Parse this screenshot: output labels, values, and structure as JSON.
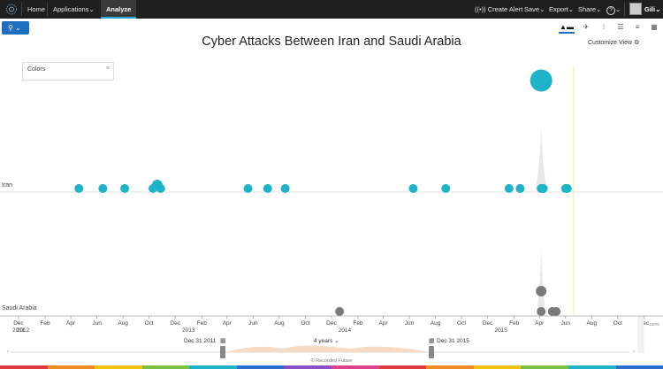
{
  "topbar": {
    "home": "Home",
    "applications": "Applications",
    "analyze": "Analyze",
    "create_alert": "Create Alert",
    "save": "Save",
    "export": "Export",
    "share": "Share",
    "help": "?",
    "user": "Gili"
  },
  "title": "Cyber Attacks Between Iran and Saudi Arabia",
  "customize_view": "Customize View",
  "colors_panel": {
    "label": "Colors"
  },
  "timeline": {
    "start_label": "Dec 31 2011",
    "end_label": "Dec 31 2015",
    "span_label": "4 years",
    "zoom_label": "100%"
  },
  "footer": "© Recorded Future",
  "colors": {
    "iran": "#1fb3c9",
    "saudi": "#7a7a7a",
    "topbar": "#1f1f1f",
    "accent": "#1e6fbf"
  },
  "chart_data": {
    "type": "scatter",
    "title": "Cyber Attacks Between Iran and Saudi Arabia",
    "x_ticks": [
      {
        "date": "2011-12",
        "label": "Dec"
      },
      {
        "date": "2012-02",
        "label": "Feb"
      },
      {
        "date": "2012-04",
        "label": "Apr"
      },
      {
        "date": "2012-06",
        "label": "Jun"
      },
      {
        "date": "2012-08",
        "label": "Aug"
      },
      {
        "date": "2012-10",
        "label": "Oct"
      },
      {
        "date": "2012-12",
        "label": "Dec"
      },
      {
        "date": "2013-02",
        "label": "Feb"
      },
      {
        "date": "2013-04",
        "label": "Apr"
      },
      {
        "date": "2013-06",
        "label": "Jun"
      },
      {
        "date": "2013-08",
        "label": "Aug"
      },
      {
        "date": "2013-10",
        "label": "Oct"
      },
      {
        "date": "2013-12",
        "label": "Dec"
      },
      {
        "date": "2014-02",
        "label": "Feb"
      },
      {
        "date": "2014-04",
        "label": "Apr"
      },
      {
        "date": "2014-06",
        "label": "Jun"
      },
      {
        "date": "2014-08",
        "label": "Aug"
      },
      {
        "date": "2014-10",
        "label": "Oct"
      },
      {
        "date": "2014-12",
        "label": "Dec"
      },
      {
        "date": "2015-02",
        "label": "Feb"
      },
      {
        "date": "2015-04",
        "label": "Apr"
      },
      {
        "date": "2015-06",
        "label": "Jun"
      },
      {
        "date": "2015-08",
        "label": "Aug"
      },
      {
        "date": "2015-10",
        "label": "Oct"
      },
      {
        "date": "2015-12",
        "label": "Dec"
      }
    ],
    "year_labels": [
      {
        "date": "2012-01",
        "label": "2012"
      },
      {
        "date": "2013-01",
        "label": "2013"
      },
      {
        "date": "2014-01",
        "label": "2014"
      },
      {
        "date": "2015-01",
        "label": "2015"
      }
    ],
    "first_tick_year": "2011",
    "rows": [
      {
        "name": "Iran",
        "events": [
          {
            "date": "2012-04-20",
            "size": 1
          },
          {
            "date": "2012-06-15",
            "size": 1
          },
          {
            "date": "2012-08-05",
            "size": 1
          },
          {
            "date": "2012-10-10",
            "size": 1
          },
          {
            "date": "2012-10-20",
            "size": 1.2
          },
          {
            "date": "2012-10-28",
            "size": 1
          },
          {
            "date": "2013-05-20",
            "size": 1
          },
          {
            "date": "2013-07-05",
            "size": 1
          },
          {
            "date": "2013-08-15",
            "size": 1
          },
          {
            "date": "2014-06-10",
            "size": 1
          },
          {
            "date": "2014-08-25",
            "size": 1
          },
          {
            "date": "2015-01-20",
            "size": 1
          },
          {
            "date": "2015-02-15",
            "size": 1
          },
          {
            "date": "2015-04-05",
            "size": 1
          },
          {
            "date": "2015-04-10",
            "size": 1
          },
          {
            "date": "2015-06-01",
            "size": 1
          },
          {
            "date": "2015-06-05",
            "size": 1
          },
          {
            "date": "2015-04-05",
            "size": 2.5,
            "peak": true
          }
        ]
      },
      {
        "name": "Saudi Arabia",
        "events": [
          {
            "date": "2013-12-20",
            "size": 1
          },
          {
            "date": "2015-04-05",
            "size": 1
          },
          {
            "date": "2015-04-05",
            "size": 1.2,
            "peak": true
          },
          {
            "date": "2015-05-01",
            "size": 1
          },
          {
            "date": "2015-05-10",
            "size": 1
          }
        ]
      }
    ]
  }
}
